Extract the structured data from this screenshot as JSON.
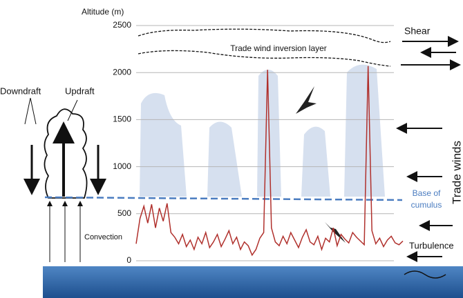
{
  "chart_data": {
    "type": "line",
    "y_label": "Altitude (m)",
    "ylim": [
      0,
      2500
    ],
    "yticks": [
      0,
      500,
      1000,
      1500,
      2000,
      2500
    ],
    "grid": true,
    "categories": [
      null,
      null,
      null,
      null,
      null,
      null,
      null,
      null,
      null,
      null,
      null,
      null,
      null,
      null,
      null,
      null,
      null,
      null,
      null,
      null,
      null,
      null,
      null,
      null,
      null,
      null,
      null,
      null,
      null,
      null,
      null,
      null,
      null,
      null,
      null,
      null,
      null,
      null,
      null,
      null,
      null,
      null,
      null,
      null,
      null,
      null,
      null,
      null,
      null,
      null,
      null,
      null,
      null,
      null,
      null,
      null,
      null,
      null,
      null,
      null,
      null,
      null,
      null,
      null,
      null,
      null,
      null,
      null,
      null,
      null
    ],
    "color": "#b0302c",
    "values": [
      180,
      450,
      580,
      400,
      600,
      350,
      560,
      420,
      610,
      300,
      250,
      180,
      280,
      150,
      220,
      120,
      250,
      180,
      300,
      140,
      200,
      280,
      150,
      230,
      320,
      180,
      250,
      120,
      200,
      160,
      60,
      120,
      240,
      300,
      2030,
      350,
      200,
      160,
      260,
      180,
      300,
      220,
      140,
      250,
      330,
      200,
      170,
      260,
      120,
      240,
      200,
      350,
      160,
      280,
      230,
      190,
      300,
      250,
      210,
      170,
      2070,
      320,
      180,
      240,
      150,
      220,
      260,
      190,
      170,
      210
    ],
    "cumulus_base": 660,
    "annotations": {
      "inversion": "Trade wind inversion layer",
      "shear": "Shear",
      "downdraft": "Downdraft",
      "updraft": "Updraft",
      "convection": "Convection",
      "base_line1": "Base of",
      "base_line2": "cumulus",
      "trade_winds": "Trade winds",
      "turbulence": "Turbulence"
    }
  }
}
